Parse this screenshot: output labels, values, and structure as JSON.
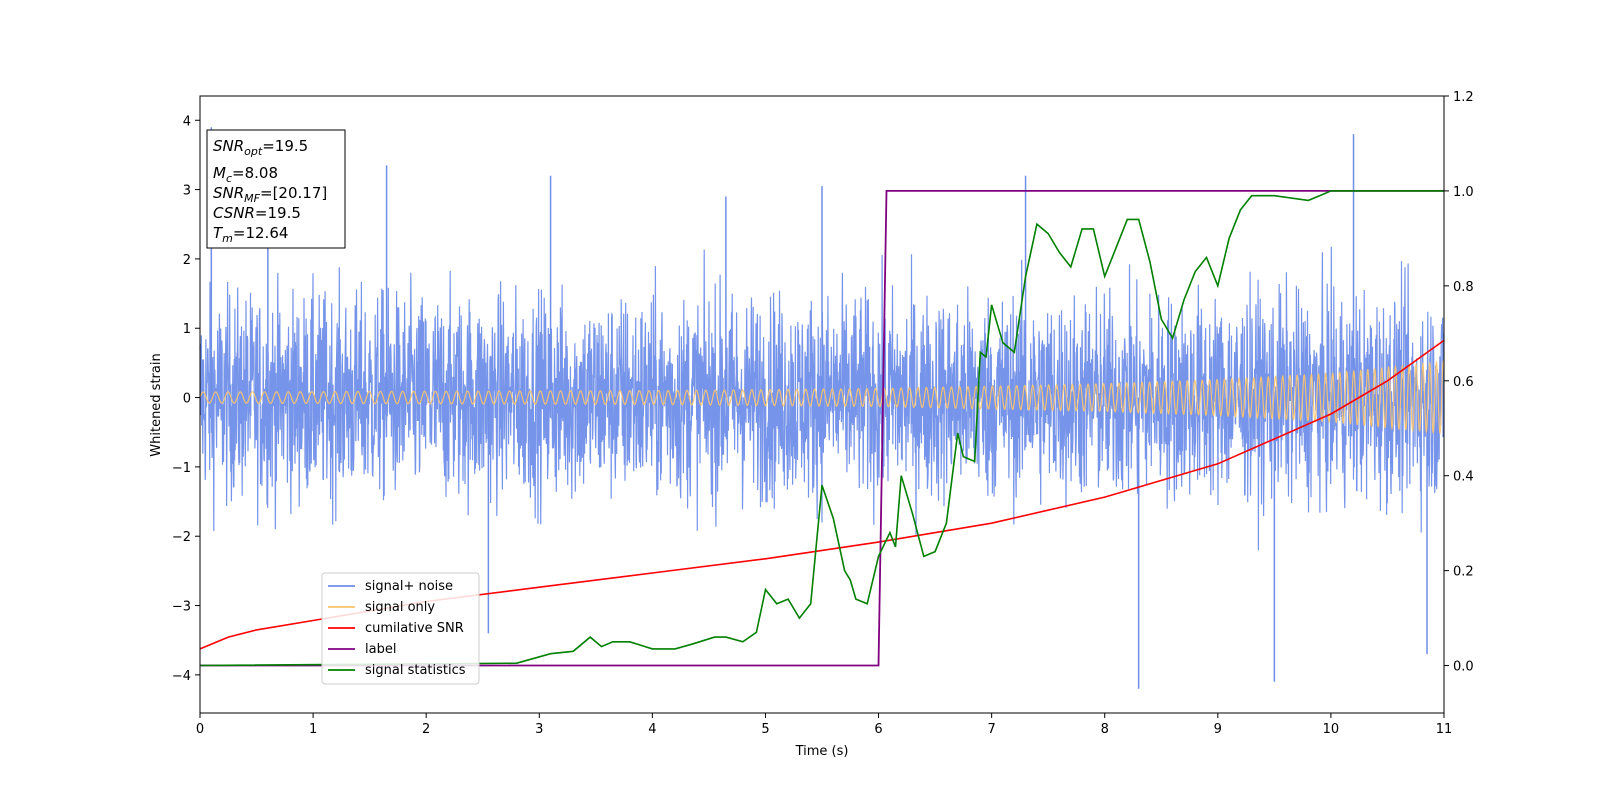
{
  "chart_data": {
    "type": "line",
    "xlabel": "Time (s)",
    "ylabel": "Whitened strain",
    "xlim": [
      0,
      11
    ],
    "ylim": [
      -4.55,
      4.35
    ],
    "ylim_right": [
      -0.1,
      1.2
    ],
    "x_ticks": [
      "0",
      "1",
      "2",
      "3",
      "4",
      "5",
      "6",
      "7",
      "8",
      "9",
      "10",
      "11"
    ],
    "y_ticks": [
      "4",
      "3",
      "2",
      "1",
      "0",
      "−1",
      "−2",
      "−3",
      "−4"
    ],
    "y_ticks_right": [
      "1.2",
      "1.0",
      "0.8",
      "0.6",
      "0.4",
      "0.2",
      "0.0"
    ],
    "grid": false,
    "legend_position": "lower-left",
    "annotation": {
      "snr_opt": {
        "symbol": "SNR",
        "sub": "opt",
        "value": "=19.5"
      },
      "mc": {
        "symbol": "M",
        "sub": "c",
        "value": "=8.08"
      },
      "snr_mf": {
        "symbol": "SNR",
        "sub": "MF",
        "value": "=[20.17]"
      },
      "csnr": {
        "symbol": "CSNR",
        "value": "=19.5"
      },
      "tm": {
        "symbol": "T",
        "sub": "m",
        "value": "=12.64"
      }
    },
    "series": [
      {
        "name": "signal+ noise",
        "axis": "left",
        "color": "#6f8ee8",
        "style": "dense noisy oscillation around 0, typical amplitude ~2, peaks to ~3.8 and troughs to ~-4.2",
        "x": [
          0.1,
          0.6,
          1.65,
          2.55,
          3.1,
          4.65,
          5.5,
          7.3,
          8.3,
          9.5,
          10.2,
          10.85
        ],
        "values": [
          3.9,
          3.0,
          3.35,
          -3.4,
          3.2,
          2.9,
          3.05,
          3.2,
          -4.2,
          -4.1,
          3.8,
          -3.7
        ]
      },
      {
        "name": "signal only",
        "axis": "left",
        "color": "#ffc56a",
        "style": "chirp: sinusoid with slowly growing amplitude",
        "x": [
          0,
          2,
          4,
          6,
          8,
          9,
          10,
          11
        ],
        "values": [
          0.08,
          0.09,
          0.1,
          0.13,
          0.2,
          0.26,
          0.35,
          0.52
        ]
      },
      {
        "name": "cumilative SNR",
        "axis": "right",
        "color": "#ff0000",
        "x": [
          0,
          0.25,
          0.5,
          1,
          2,
          3,
          4,
          5,
          6,
          7,
          8,
          9,
          10,
          10.5,
          11
        ],
        "values": [
          0.035,
          0.06,
          0.075,
          0.095,
          0.135,
          0.165,
          0.195,
          0.225,
          0.26,
          0.3,
          0.355,
          0.425,
          0.53,
          0.6,
          0.685
        ]
      },
      {
        "name": "label",
        "axis": "right",
        "color": "#800080",
        "x": [
          0,
          6.0,
          6.07,
          11
        ],
        "values": [
          0.0,
          0.0,
          1.0,
          1.0
        ]
      },
      {
        "name": "signal statistics",
        "axis": "right",
        "color": "#008000",
        "x": [
          0,
          2.8,
          3.1,
          3.3,
          3.45,
          3.55,
          3.65,
          3.8,
          4.0,
          4.2,
          4.35,
          4.55,
          4.65,
          4.8,
          4.92,
          5.0,
          5.1,
          5.2,
          5.3,
          5.4,
          5.5,
          5.6,
          5.7,
          5.75,
          5.8,
          5.9,
          6.0,
          6.1,
          6.15,
          6.2,
          6.3,
          6.4,
          6.5,
          6.6,
          6.7,
          6.75,
          6.85,
          6.9,
          6.95,
          7.0,
          7.1,
          7.2,
          7.3,
          7.4,
          7.5,
          7.6,
          7.7,
          7.8,
          7.9,
          8.0,
          8.1,
          8.2,
          8.3,
          8.4,
          8.5,
          8.6,
          8.7,
          8.8,
          8.9,
          9.0,
          9.1,
          9.2,
          9.3,
          9.5,
          9.8,
          9.9,
          10.0,
          11
        ],
        "values": [
          0.0,
          0.005,
          0.025,
          0.03,
          0.06,
          0.04,
          0.05,
          0.05,
          0.035,
          0.035,
          0.045,
          0.06,
          0.06,
          0.05,
          0.07,
          0.16,
          0.13,
          0.14,
          0.1,
          0.13,
          0.38,
          0.31,
          0.2,
          0.18,
          0.14,
          0.13,
          0.23,
          0.28,
          0.25,
          0.4,
          0.32,
          0.23,
          0.24,
          0.3,
          0.49,
          0.44,
          0.43,
          0.66,
          0.65,
          0.76,
          0.68,
          0.66,
          0.82,
          0.93,
          0.91,
          0.87,
          0.84,
          0.92,
          0.92,
          0.82,
          0.88,
          0.94,
          0.94,
          0.85,
          0.73,
          0.69,
          0.77,
          0.83,
          0.86,
          0.8,
          0.9,
          0.96,
          0.99,
          0.99,
          0.98,
          0.99,
          1.0,
          1.0
        ]
      }
    ]
  }
}
